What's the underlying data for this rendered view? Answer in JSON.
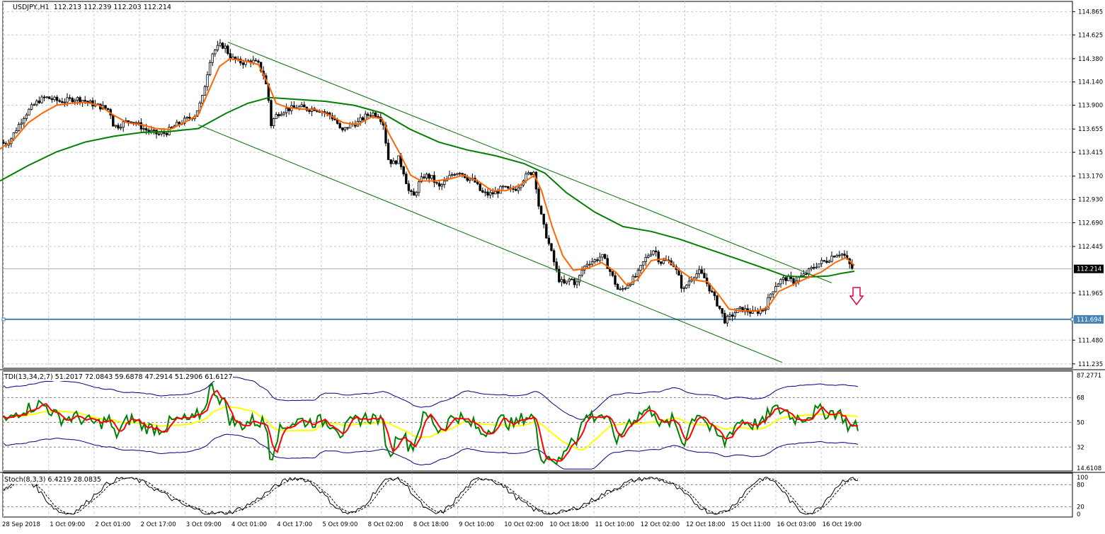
{
  "window": {
    "title": "USDJPY.,H1",
    "ohlc": "112.213 112.239 112.203 112.214"
  },
  "colors": {
    "background": "#ffffff",
    "grid": "#c8c8c8",
    "candle": "#000000",
    "ma_fast": "#ff6600",
    "ma_slow": "#008000",
    "channel": "#007000",
    "support_line": "#4682b4",
    "arrow": "#e8003c",
    "tdi_green": "#008000",
    "tdi_red": "#ff0000",
    "tdi_yellow": "#ffff00",
    "tdi_band": "#000080"
  },
  "price_axis": {
    "ticks": [
      "114.865",
      "114.625",
      "114.380",
      "114.140",
      "113.900",
      "113.655",
      "113.415",
      "113.170",
      "112.930",
      "112.690",
      "112.445",
      "111.965",
      "111.480",
      "111.235"
    ],
    "current_price_label": "112.214",
    "support_label": "111.694",
    "ylim": [
      111.19,
      114.97
    ]
  },
  "time_axis": {
    "labels": [
      "28 Sep 2018",
      "1 Oct 09:00",
      "2 Oct 01:00",
      "2 Oct 17:00",
      "3 Oct 09:00",
      "4 Oct 01:00",
      "4 Oct 17:00",
      "5 Oct 09:00",
      "8 Oct 02:00",
      "8 Oct 18:00",
      "9 Oct 10:00",
      "10 Oct 02:00",
      "10 Oct 18:00",
      "11 Oct 10:00",
      "12 Oct 02:00",
      "12 Oct 18:00",
      "15 Oct 11:00",
      "16 Oct 03:00",
      "16 Oct 19:00"
    ]
  },
  "tdi": {
    "label": "TDI(13,34,2,7) 51.2017 72.0843 59.6878 47.2914 51.2906 61.6127",
    "ticks": [
      "87.2771",
      "68",
      "50",
      "32",
      "14.6108"
    ]
  },
  "stoch": {
    "label": "Stoch(8,3,3) 6.4219 28.0835",
    "ticks": [
      "100",
      "80",
      "20",
      "0"
    ]
  },
  "chart_data": {
    "type": "candlestick",
    "symbol": "USDJPY.",
    "timeframe": "H1",
    "ylim": [
      111.19,
      114.97
    ],
    "current_price": 112.214,
    "support_level": 111.694,
    "close_path": [
      [
        0,
        113.52
      ],
      [
        8,
        113.5
      ],
      [
        15,
        113.55
      ],
      [
        25,
        113.68
      ],
      [
        35,
        113.8
      ],
      [
        45,
        113.88
      ],
      [
        55,
        113.95
      ],
      [
        65,
        113.98
      ],
      [
        75,
        113.96
      ],
      [
        85,
        113.94
      ],
      [
        95,
        113.95
      ],
      [
        105,
        113.97
      ],
      [
        115,
        113.96
      ],
      [
        125,
        113.93
      ],
      [
        135,
        113.9
      ],
      [
        145,
        113.88
      ],
      [
        155,
        113.85
      ],
      [
        160,
        113.7
      ],
      [
        165,
        113.68
      ],
      [
        175,
        113.72
      ],
      [
        185,
        113.75
      ],
      [
        195,
        113.7
      ],
      [
        205,
        113.65
      ],
      [
        215,
        113.62
      ],
      [
        225,
        113.6
      ],
      [
        235,
        113.62
      ],
      [
        245,
        113.68
      ],
      [
        255,
        113.72
      ],
      [
        265,
        113.76
      ],
      [
        275,
        113.8
      ],
      [
        285,
        113.95
      ],
      [
        292,
        114.2
      ],
      [
        298,
        114.42
      ],
      [
        305,
        114.48
      ],
      [
        312,
        114.52
      ],
      [
        318,
        114.5
      ],
      [
        325,
        114.4
      ],
      [
        335,
        114.35
      ],
      [
        345,
        114.34
      ],
      [
        355,
        114.36
      ],
      [
        365,
        114.32
      ],
      [
        372,
        114.22
      ],
      [
        378,
        114.05
      ],
      [
        383,
        113.7
      ],
      [
        388,
        113.78
      ],
      [
        395,
        113.83
      ],
      [
        405,
        113.86
      ],
      [
        415,
        113.87
      ],
      [
        425,
        113.88
      ],
      [
        435,
        113.86
      ],
      [
        445,
        113.87
      ],
      [
        455,
        113.84
      ],
      [
        465,
        113.8
      ],
      [
        475,
        113.74
      ],
      [
        482,
        113.62
      ],
      [
        488,
        113.66
      ],
      [
        495,
        113.7
      ],
      [
        505,
        113.72
      ],
      [
        515,
        113.78
      ],
      [
        525,
        113.82
      ],
      [
        535,
        113.8
      ],
      [
        542,
        113.7
      ],
      [
        548,
        113.35
      ],
      [
        555,
        113.3
      ],
      [
        563,
        113.35
      ],
      [
        570,
        113.22
      ],
      [
        578,
        113.0
      ],
      [
        585,
        112.96
      ],
      [
        592,
        113.1
      ],
      [
        600,
        113.18
      ],
      [
        610,
        113.15
      ],
      [
        620,
        113.05
      ],
      [
        630,
        113.12
      ],
      [
        640,
        113.2
      ],
      [
        650,
        113.22
      ],
      [
        660,
        113.15
      ],
      [
        670,
        113.12
      ],
      [
        680,
        113.0
      ],
      [
        690,
        112.98
      ],
      [
        700,
        113.0
      ],
      [
        710,
        113.05
      ],
      [
        720,
        113.02
      ],
      [
        730,
        113.05
      ],
      [
        740,
        113.15
      ],
      [
        748,
        113.2
      ],
      [
        755,
        113.22
      ],
      [
        760,
        112.9
      ],
      [
        768,
        112.65
      ],
      [
        775,
        112.48
      ],
      [
        782,
        112.3
      ],
      [
        790,
        112.1
      ],
      [
        798,
        112.05
      ],
      [
        806,
        112.12
      ],
      [
        814,
        112.05
      ],
      [
        822,
        112.2
      ],
      [
        830,
        112.28
      ],
      [
        840,
        112.3
      ],
      [
        850,
        112.35
      ],
      [
        858,
        112.25
      ],
      [
        866,
        112.12
      ],
      [
        874,
        111.98
      ],
      [
        882,
        112.02
      ],
      [
        890,
        112.08
      ],
      [
        900,
        112.15
      ],
      [
        910,
        112.3
      ],
      [
        918,
        112.38
      ],
      [
        925,
        112.42
      ],
      [
        932,
        112.28
      ],
      [
        940,
        112.3
      ],
      [
        950,
        112.28
      ],
      [
        958,
        112.15
      ],
      [
        965,
        111.98
      ],
      [
        972,
        112.08
      ],
      [
        980,
        112.15
      ],
      [
        988,
        112.18
      ],
      [
        995,
        112.12
      ],
      [
        1003,
        112.0
      ],
      [
        1010,
        111.9
      ],
      [
        1017,
        111.8
      ],
      [
        1024,
        111.68
      ],
      [
        1032,
        111.72
      ],
      [
        1040,
        111.78
      ],
      [
        1048,
        111.8
      ],
      [
        1056,
        111.78
      ],
      [
        1064,
        111.76
      ],
      [
        1072,
        111.78
      ],
      [
        1080,
        111.8
      ],
      [
        1088,
        111.95
      ],
      [
        1096,
        112.05
      ],
      [
        1104,
        112.1
      ],
      [
        1112,
        112.12
      ],
      [
        1120,
        112.08
      ],
      [
        1128,
        112.12
      ],
      [
        1136,
        112.15
      ],
      [
        1144,
        112.2
      ],
      [
        1152,
        112.25
      ],
      [
        1160,
        112.28
      ],
      [
        1168,
        112.3
      ],
      [
        1176,
        112.35
      ],
      [
        1184,
        112.38
      ],
      [
        1192,
        112.36
      ],
      [
        1198,
        112.28
      ],
      [
        1204,
        112.22
      ],
      [
        1207,
        112.214
      ]
    ],
    "ma_fast_path": [
      [
        0,
        113.45
      ],
      [
        20,
        113.55
      ],
      [
        40,
        113.72
      ],
      [
        60,
        113.82
      ],
      [
        80,
        113.9
      ],
      [
        100,
        113.92
      ],
      [
        120,
        113.93
      ],
      [
        140,
        113.9
      ],
      [
        160,
        113.8
      ],
      [
        180,
        113.72
      ],
      [
        200,
        113.7
      ],
      [
        220,
        113.66
      ],
      [
        240,
        113.65
      ],
      [
        260,
        113.72
      ],
      [
        280,
        113.8
      ],
      [
        295,
        114.05
      ],
      [
        310,
        114.3
      ],
      [
        325,
        114.38
      ],
      [
        345,
        114.36
      ],
      [
        365,
        114.32
      ],
      [
        380,
        114.1
      ],
      [
        390,
        113.92
      ],
      [
        405,
        113.88
      ],
      [
        425,
        113.86
      ],
      [
        445,
        113.86
      ],
      [
        465,
        113.8
      ],
      [
        485,
        113.72
      ],
      [
        505,
        113.7
      ],
      [
        525,
        113.78
      ],
      [
        540,
        113.76
      ],
      [
        550,
        113.6
      ],
      [
        565,
        113.4
      ],
      [
        580,
        113.18
      ],
      [
        595,
        113.12
      ],
      [
        615,
        113.12
      ],
      [
        635,
        113.14
      ],
      [
        655,
        113.18
      ],
      [
        675,
        113.12
      ],
      [
        695,
        113.02
      ],
      [
        715,
        113.02
      ],
      [
        735,
        113.08
      ],
      [
        755,
        113.18
      ],
      [
        765,
        113.02
      ],
      [
        780,
        112.65
      ],
      [
        795,
        112.35
      ],
      [
        810,
        112.2
      ],
      [
        830,
        112.22
      ],
      [
        850,
        112.28
      ],
      [
        870,
        112.18
      ],
      [
        885,
        112.05
      ],
      [
        900,
        112.1
      ],
      [
        920,
        112.3
      ],
      [
        940,
        112.32
      ],
      [
        960,
        112.2
      ],
      [
        980,
        112.1
      ],
      [
        1000,
        112.08
      ],
      [
        1015,
        111.95
      ],
      [
        1030,
        111.8
      ],
      [
        1050,
        111.78
      ],
      [
        1070,
        111.78
      ],
      [
        1085,
        111.82
      ],
      [
        1100,
        111.98
      ],
      [
        1120,
        112.05
      ],
      [
        1140,
        112.12
      ],
      [
        1160,
        112.18
      ],
      [
        1180,
        112.28
      ],
      [
        1195,
        112.33
      ],
      [
        1207,
        112.25
      ]
    ],
    "ma_slow_path": [
      [
        0,
        113.12
      ],
      [
        40,
        113.28
      ],
      [
        80,
        113.42
      ],
      [
        120,
        113.52
      ],
      [
        160,
        113.58
      ],
      [
        200,
        113.62
      ],
      [
        240,
        113.63
      ],
      [
        280,
        113.66
      ],
      [
        320,
        113.82
      ],
      [
        350,
        113.92
      ],
      [
        380,
        113.98
      ],
      [
        420,
        113.96
      ],
      [
        460,
        113.94
      ],
      [
        500,
        113.9
      ],
      [
        540,
        113.82
      ],
      [
        580,
        113.65
      ],
      [
        620,
        113.52
      ],
      [
        660,
        113.44
      ],
      [
        700,
        113.38
      ],
      [
        740,
        113.3
      ],
      [
        770,
        113.2
      ],
      [
        800,
        113.0
      ],
      [
        840,
        112.8
      ],
      [
        880,
        112.65
      ],
      [
        920,
        112.6
      ],
      [
        960,
        112.52
      ],
      [
        1000,
        112.42
      ],
      [
        1040,
        112.32
      ],
      [
        1080,
        112.22
      ],
      [
        1110,
        112.14
      ],
      [
        1140,
        112.13
      ],
      [
        1170,
        112.14
      ],
      [
        1190,
        112.17
      ],
      [
        1207,
        112.19
      ]
    ],
    "channel_upper": [
      [
        322,
        114.55
      ],
      [
        1175,
        112.07
      ]
    ],
    "channel_lower": [
      [
        280,
        113.7
      ],
      [
        1105,
        111.25
      ]
    ]
  }
}
